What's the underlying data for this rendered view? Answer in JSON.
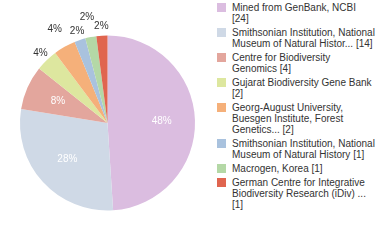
{
  "chart_data": {
    "type": "pie",
    "categories": [
      "Mined from GenBank, NCBI [24]",
      "Smithsonian Institution, National Museum of Natural Histor... [14]",
      "Centre for Biodiversity Genomics [4]",
      "Gujarat Biodiversity Gene Bank [2]",
      "Georg-August University, Buesgen Institute, Forest Genetics... [2]",
      "Smithsonian Institution, National Museum of Natural History [1]",
      "Macrogen, Korea [1]",
      "German Centre for Integrative Biodiversity Research (iDiv) ... [1]"
    ],
    "values": [
      48,
      28,
      8,
      4,
      4,
      2,
      2,
      2
    ],
    "value_labels": [
      "48%",
      "28%",
      "8%",
      "4%",
      "4%",
      "2%",
      "2%",
      "2%"
    ],
    "colors": [
      "#dbbde0",
      "#cfd9e6",
      "#e3a69d",
      "#dde79f",
      "#f5b07a",
      "#a9c2de",
      "#b4d8a6",
      "#e0654f"
    ],
    "data_labels": true,
    "legend": "right"
  }
}
